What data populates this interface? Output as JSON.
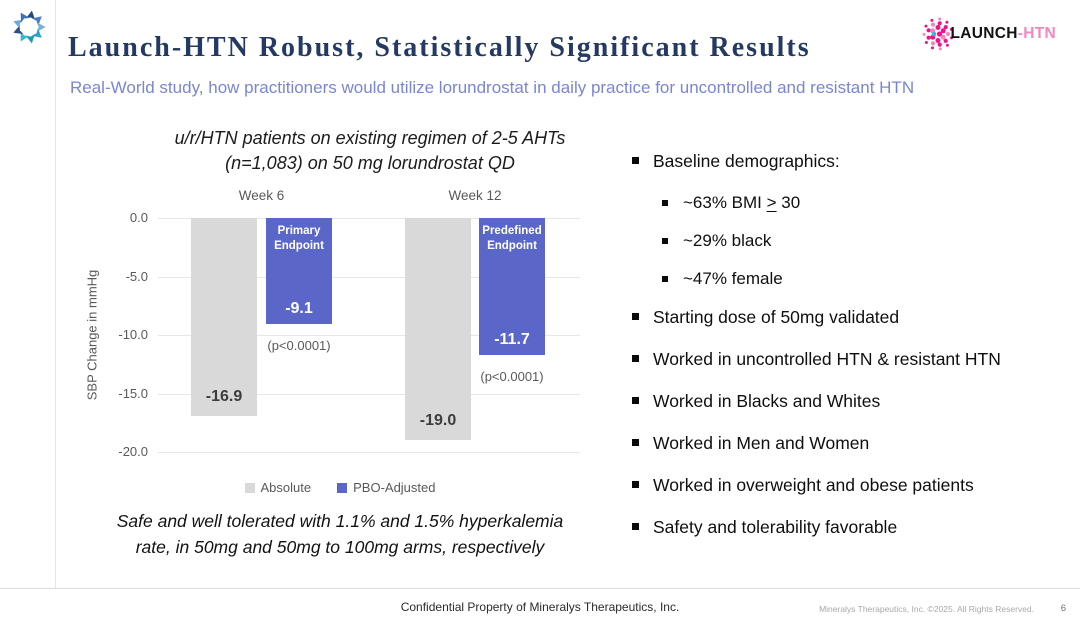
{
  "colors": {
    "title_navy": "#243a62",
    "subtitle_periwinkle": "#7a85d6",
    "bar_absolute": "#d9d9d9",
    "bar_pbo": "#5a67c9",
    "axis_gray": "#595959",
    "launch_pink": "#e9168b",
    "launch_pink_light": "#f584c0",
    "launch_blue": "#3bb1e5"
  },
  "header": {
    "title": "Launch-HTN Robust, Statistically Significant Results",
    "subtitle": "Real-World study, how practitioners would utilize lorundrostat in daily practice for uncontrolled and resistant HTN"
  },
  "logos": {
    "mineralys_icon": "pinwheel-arrows-icon",
    "launch_word": "LAUNCH",
    "launch_suffix": "-HTN"
  },
  "chart_data": {
    "type": "bar",
    "title_lines": [
      "u/r/HTN patients on existing regimen of 2-5 AHTs",
      "(n=1,083) on 50 mg lorundrostat QD"
    ],
    "ylabel": "SBP Change in mmHg",
    "ylim": [
      0,
      -20
    ],
    "ytick_labels": [
      "0.0",
      "-5.0",
      "-10.0",
      "-15.0",
      "-20.0"
    ],
    "grid": true,
    "legend_position": "bottom",
    "categories": [
      "Week 6",
      "Week 12"
    ],
    "series": [
      {
        "name": "Absolute",
        "values": [
          -16.9,
          -19.0
        ],
        "value_labels": [
          "-16.9",
          "-19.0"
        ]
      },
      {
        "name": "PBO-Adjusted",
        "values": [
          -9.1,
          -11.7
        ],
        "value_labels": [
          "-9.1",
          "-11.7"
        ],
        "annotations": [
          "Primary Endpoint",
          "Predefined Endpoint"
        ],
        "p_values": [
          "(p<0.0001)",
          "(p<0.0001)"
        ]
      }
    ],
    "footnote_lines": [
      "Safe and well tolerated with 1.1% and 1.5% hyperkalemia",
      "rate, in 50mg and 50mg to 100mg arms, respectively"
    ]
  },
  "bullets": [
    {
      "level": 1,
      "text": "Baseline demographics:"
    },
    {
      "level": 2,
      "parts": {
        "before": "~63% BMI ",
        "underlined": ">",
        "after": " 30"
      }
    },
    {
      "level": 2,
      "text": "~29% black"
    },
    {
      "level": 2,
      "text": "~47% female"
    },
    {
      "level": 1,
      "text": "Starting dose of 50mg validated"
    },
    {
      "level": 1,
      "text": "Worked in uncontrolled HTN & resistant HTN"
    },
    {
      "level": 1,
      "text": "Worked in Blacks and Whites"
    },
    {
      "level": 1,
      "text": "Worked in Men and Women"
    },
    {
      "level": 1,
      "text": "Worked in overweight and obese patients"
    },
    {
      "level": 1,
      "text": "Safety and tolerability favorable"
    }
  ],
  "footer": {
    "center": "Confidential Property of Mineralys Therapeutics, Inc.",
    "right": "Mineralys Therapeutics, Inc. ©2025. All Rights Reserved.",
    "page": "6"
  }
}
